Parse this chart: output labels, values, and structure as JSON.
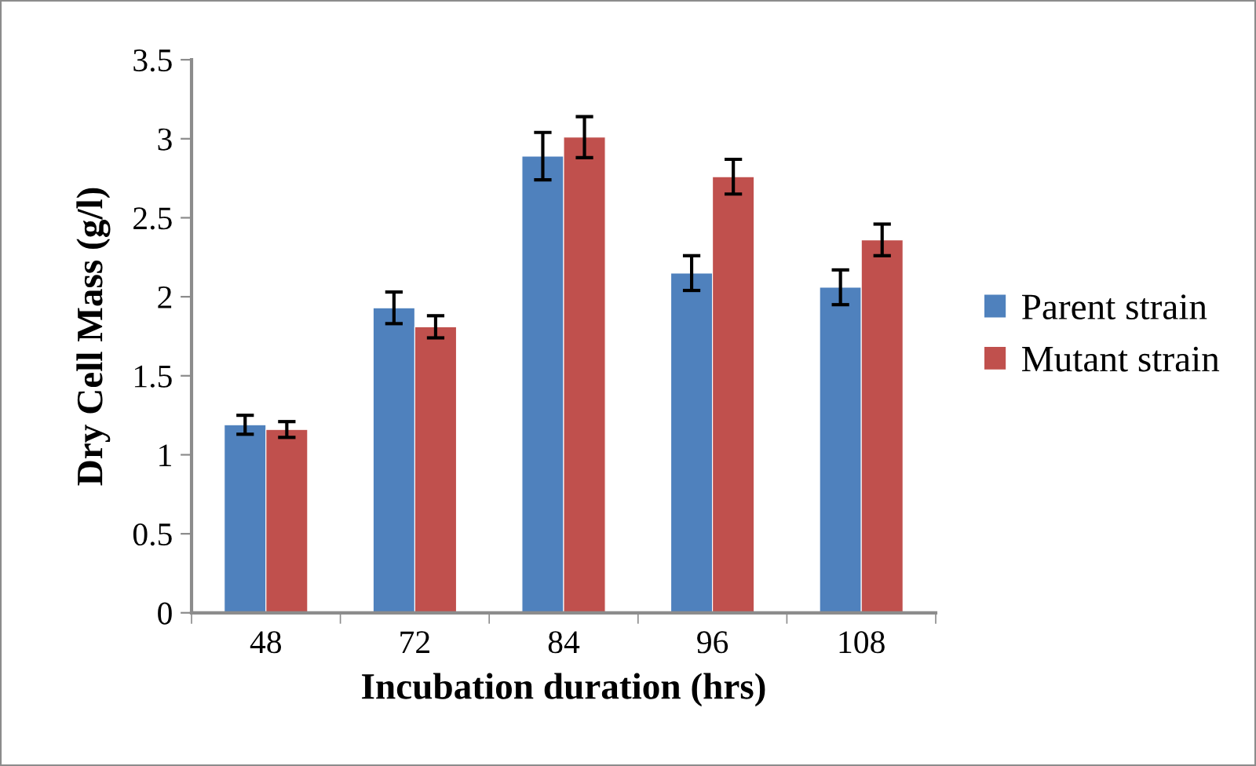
{
  "chart_data": {
    "type": "bar",
    "xlabel": "Incubation duration (hrs)",
    "ylabel": "Dry Cell Mass (g/l)",
    "categories": [
      "48",
      "72",
      "84",
      "96",
      "108"
    ],
    "series": [
      {
        "name": "Parent strain",
        "color": "#4f81bd",
        "values": [
          1.19,
          1.93,
          2.89,
          2.15,
          2.06
        ],
        "errors": [
          0.06,
          0.1,
          0.15,
          0.11,
          0.11
        ]
      },
      {
        "name": "Mutant strain",
        "color": "#c0504d",
        "values": [
          1.16,
          1.81,
          3.01,
          2.76,
          2.36
        ],
        "errors": [
          0.05,
          0.07,
          0.13,
          0.11,
          0.1
        ]
      }
    ],
    "ylim": [
      0,
      3.5
    ],
    "yticks": [
      0,
      0.5,
      1,
      1.5,
      2,
      2.5,
      3,
      3.5
    ],
    "grid": false,
    "legend": "right"
  }
}
